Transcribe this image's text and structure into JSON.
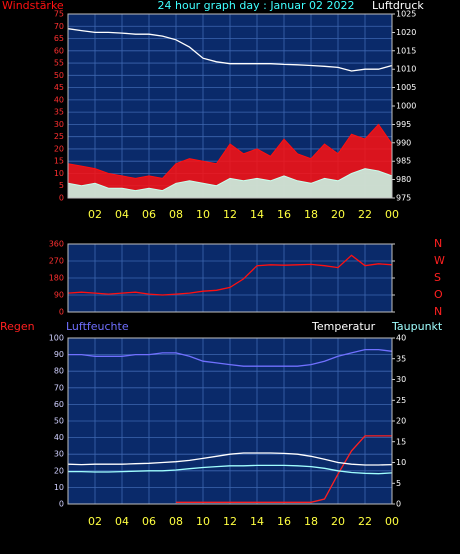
{
  "chart_data": [
    {
      "type": "line",
      "title": "24 hour graph day : Januar 02 2022",
      "x": [
        0,
        1,
        2,
        3,
        4,
        5,
        6,
        7,
        8,
        9,
        10,
        11,
        12,
        13,
        14,
        15,
        16,
        17,
        18,
        19,
        20,
        21,
        22,
        23,
        24
      ],
      "xlim": [
        0,
        24
      ],
      "xticks": [
        {
          "value": 2,
          "label": "02"
        },
        {
          "value": 4,
          "label": "04"
        },
        {
          "value": 6,
          "label": "06"
        },
        {
          "value": 8,
          "label": "08"
        },
        10,
        12,
        14,
        16,
        18,
        20,
        22,
        {
          "value": 24,
          "label": "00"
        }
      ],
      "ylim": [
        0,
        75
      ],
      "yticks": [
        0,
        5,
        10,
        15,
        20,
        25,
        30,
        35,
        40,
        45,
        50,
        55,
        60,
        65,
        70,
        75
      ],
      "y2lim": [
        975,
        1025
      ],
      "y2ticks": [
        975,
        980,
        985,
        990,
        995,
        1000,
        1005,
        1010,
        1015,
        1020,
        1025
      ],
      "grid": true,
      "series": [
        {
          "name": "Windstärke",
          "color": "#ff1010",
          "style": "area",
          "values": [
            14,
            13,
            12,
            10,
            9,
            8,
            9,
            8,
            14,
            16,
            15,
            14,
            22,
            18,
            20,
            17,
            24,
            18,
            16,
            22,
            18,
            26,
            24,
            30,
            22
          ]
        },
        {
          "color": "#c8ffee",
          "style": "area",
          "values": [
            6,
            5,
            6,
            4,
            4,
            3,
            4,
            3,
            6,
            7,
            6,
            5,
            8,
            7,
            8,
            7,
            9,
            7,
            6,
            8,
            7,
            10,
            12,
            11,
            9
          ]
        },
        {
          "name": "Luftdruck",
          "color": "#ffffff",
          "axis": "y2",
          "values": [
            1021,
            1020.5,
            1020,
            1020,
            1019.8,
            1019.5,
            1019.5,
            1019,
            1018,
            1016,
            1013,
            1012,
            1011.5,
            1011.5,
            1011.5,
            1011.5,
            1011.3,
            1011.2,
            1011,
            1010.8,
            1010.5,
            1009.5,
            1010,
            1010,
            1011
          ]
        }
      ]
    },
    {
      "type": "line",
      "x": [
        0,
        1,
        2,
        3,
        4,
        5,
        6,
        7,
        8,
        9,
        10,
        11,
        12,
        13,
        14,
        15,
        16,
        17,
        18,
        19,
        20,
        21,
        22,
        23,
        24
      ],
      "xlim": [
        0,
        24
      ],
      "ylim": [
        0,
        360
      ],
      "yticks": [
        0,
        90,
        180,
        270,
        360
      ],
      "y2lim": [
        0,
        360
      ],
      "y2ticks": [
        {
          "value": 0,
          "label": "N"
        },
        {
          "value": 90,
          "label": "O"
        },
        {
          "value": 180,
          "label": "S"
        },
        {
          "value": 270,
          "label": "W"
        },
        {
          "value": 360,
          "label": "N"
        }
      ],
      "grid": true,
      "series": [
        {
          "color": "#ff1010",
          "values": [
            100,
            105,
            100,
            95,
            100,
            105,
            95,
            90,
            95,
            100,
            110,
            115,
            130,
            175,
            245,
            250,
            248,
            250,
            252,
            245,
            235,
            300,
            245,
            255,
            250
          ]
        }
      ]
    },
    {
      "type": "line",
      "x": [
        0,
        1,
        2,
        3,
        4,
        5,
        6,
        7,
        8,
        9,
        10,
        11,
        12,
        13,
        14,
        15,
        16,
        17,
        18,
        19,
        20,
        21,
        22,
        23,
        24
      ],
      "xlim": [
        0,
        24
      ],
      "xticks": [
        {
          "value": 2,
          "label": "02"
        },
        {
          "value": 4,
          "label": "04"
        },
        {
          "value": 6,
          "label": "06"
        },
        {
          "value": 8,
          "label": "08"
        },
        10,
        12,
        14,
        16,
        18,
        20,
        22,
        {
          "value": 24,
          "label": "00"
        }
      ],
      "ylim": [
        0,
        100
      ],
      "yticks": [
        0,
        10,
        20,
        30,
        40,
        50,
        60,
        70,
        80,
        90,
        100
      ],
      "y2lim": [
        0,
        40
      ],
      "y2ticks": [
        0,
        5,
        10,
        15,
        20,
        25,
        30,
        35,
        40
      ],
      "grid": true,
      "series": [
        {
          "name": "Regen",
          "color": "#ff2020",
          "values": [
            null,
            null,
            null,
            null,
            null,
            null,
            null,
            null,
            1,
            1,
            1,
            1,
            1,
            1,
            1,
            1,
            1,
            1,
            1,
            3,
            18,
            32,
            41,
            41,
            41
          ]
        },
        {
          "name": "Luftfeuchte",
          "color": "#7070ff",
          "values": [
            90,
            90,
            89,
            89,
            89,
            90,
            90,
            91,
            91,
            89,
            86,
            85,
            84,
            83,
            83,
            83,
            83,
            83,
            84,
            86,
            89,
            91,
            93,
            93,
            92
          ]
        },
        {
          "name": "Temperatur",
          "color": "#ffffff",
          "axis": "y2",
          "values": [
            9.6,
            9.5,
            9.6,
            9.6,
            9.6,
            9.7,
            9.8,
            10,
            10.2,
            10.5,
            11,
            11.5,
            12,
            12.3,
            12.3,
            12.3,
            12.2,
            12,
            11.5,
            10.8,
            10,
            9.6,
            9.4,
            9.4,
            9.5
          ]
        },
        {
          "name": "Taupunkt",
          "color": "#a0ffff",
          "axis": "y2",
          "values": [
            7.8,
            7.8,
            7.7,
            7.7,
            7.8,
            7.9,
            8,
            8,
            8.2,
            8.5,
            8.8,
            9,
            9.2,
            9.2,
            9.3,
            9.3,
            9.3,
            9.2,
            9,
            8.6,
            8,
            7.6,
            7.4,
            7.3,
            7.5
          ]
        }
      ]
    }
  ]
}
